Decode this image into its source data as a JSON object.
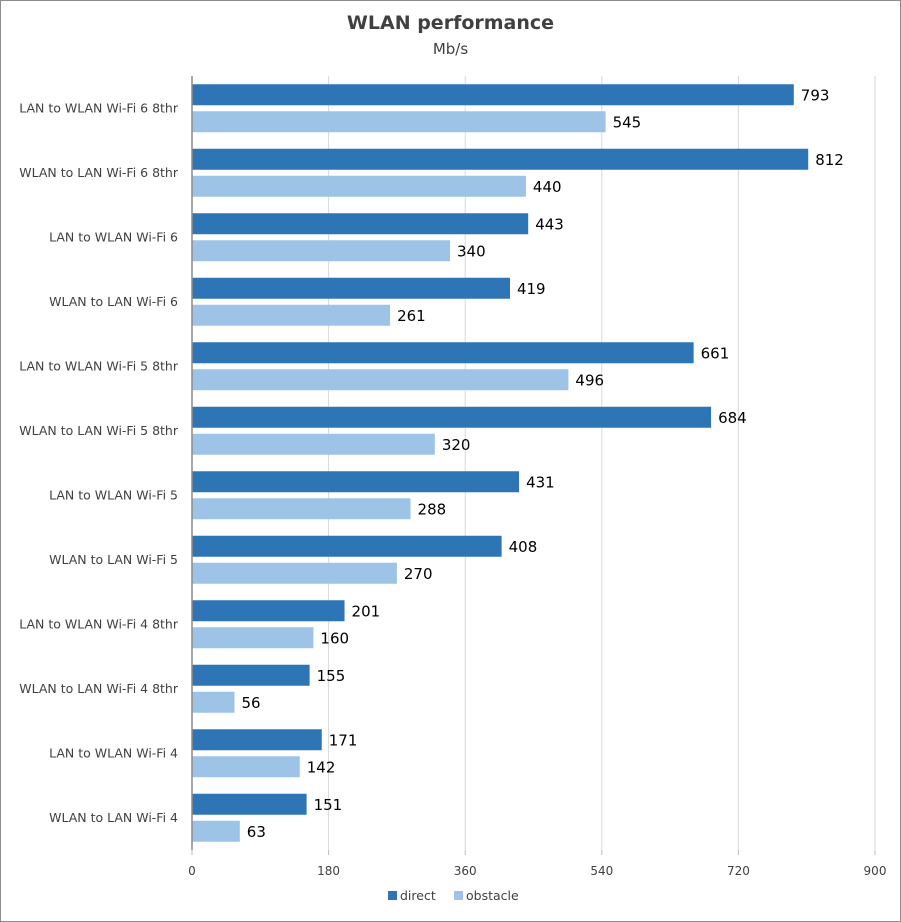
{
  "chart_data": {
    "type": "bar",
    "orientation": "horizontal",
    "title": "WLAN performance",
    "subtitle": "Mb/s",
    "xlabel": "",
    "ylabel": "",
    "xlim": [
      0,
      900
    ],
    "ticks": [
      0,
      180,
      360,
      540,
      720,
      900
    ],
    "tick_labels": [
      "0",
      "180",
      "360",
      "540",
      "720",
      "900"
    ],
    "grid": true,
    "legend_position": "bottom",
    "categories": [
      "LAN to WLAN Wi-Fi 6 8thr",
      "WLAN to LAN Wi-Fi 6 8thr",
      "LAN to WLAN Wi-Fi 6",
      "WLAN to LAN Wi-Fi 6",
      "LAN to WLAN Wi-Fi 5 8thr",
      "WLAN to LAN Wi-Fi 5 8thr",
      "LAN to WLAN Wi-Fi 5",
      "WLAN to LAN Wi-Fi 5",
      "LAN to WLAN Wi-Fi 4 8thr",
      "WLAN to LAN Wi-Fi 4 8thr",
      "LAN to WLAN Wi-Fi 4",
      "WLAN to LAN Wi-Fi 4"
    ],
    "series": [
      {
        "name": "direct",
        "color": "#2e75b6",
        "values": [
          793,
          812,
          443,
          419,
          661,
          684,
          431,
          408,
          201,
          155,
          171,
          151
        ]
      },
      {
        "name": "obstacle",
        "color": "#9dc3e6",
        "values": [
          545,
          440,
          340,
          261,
          496,
          320,
          288,
          270,
          160,
          56,
          142,
          63
        ]
      }
    ]
  }
}
